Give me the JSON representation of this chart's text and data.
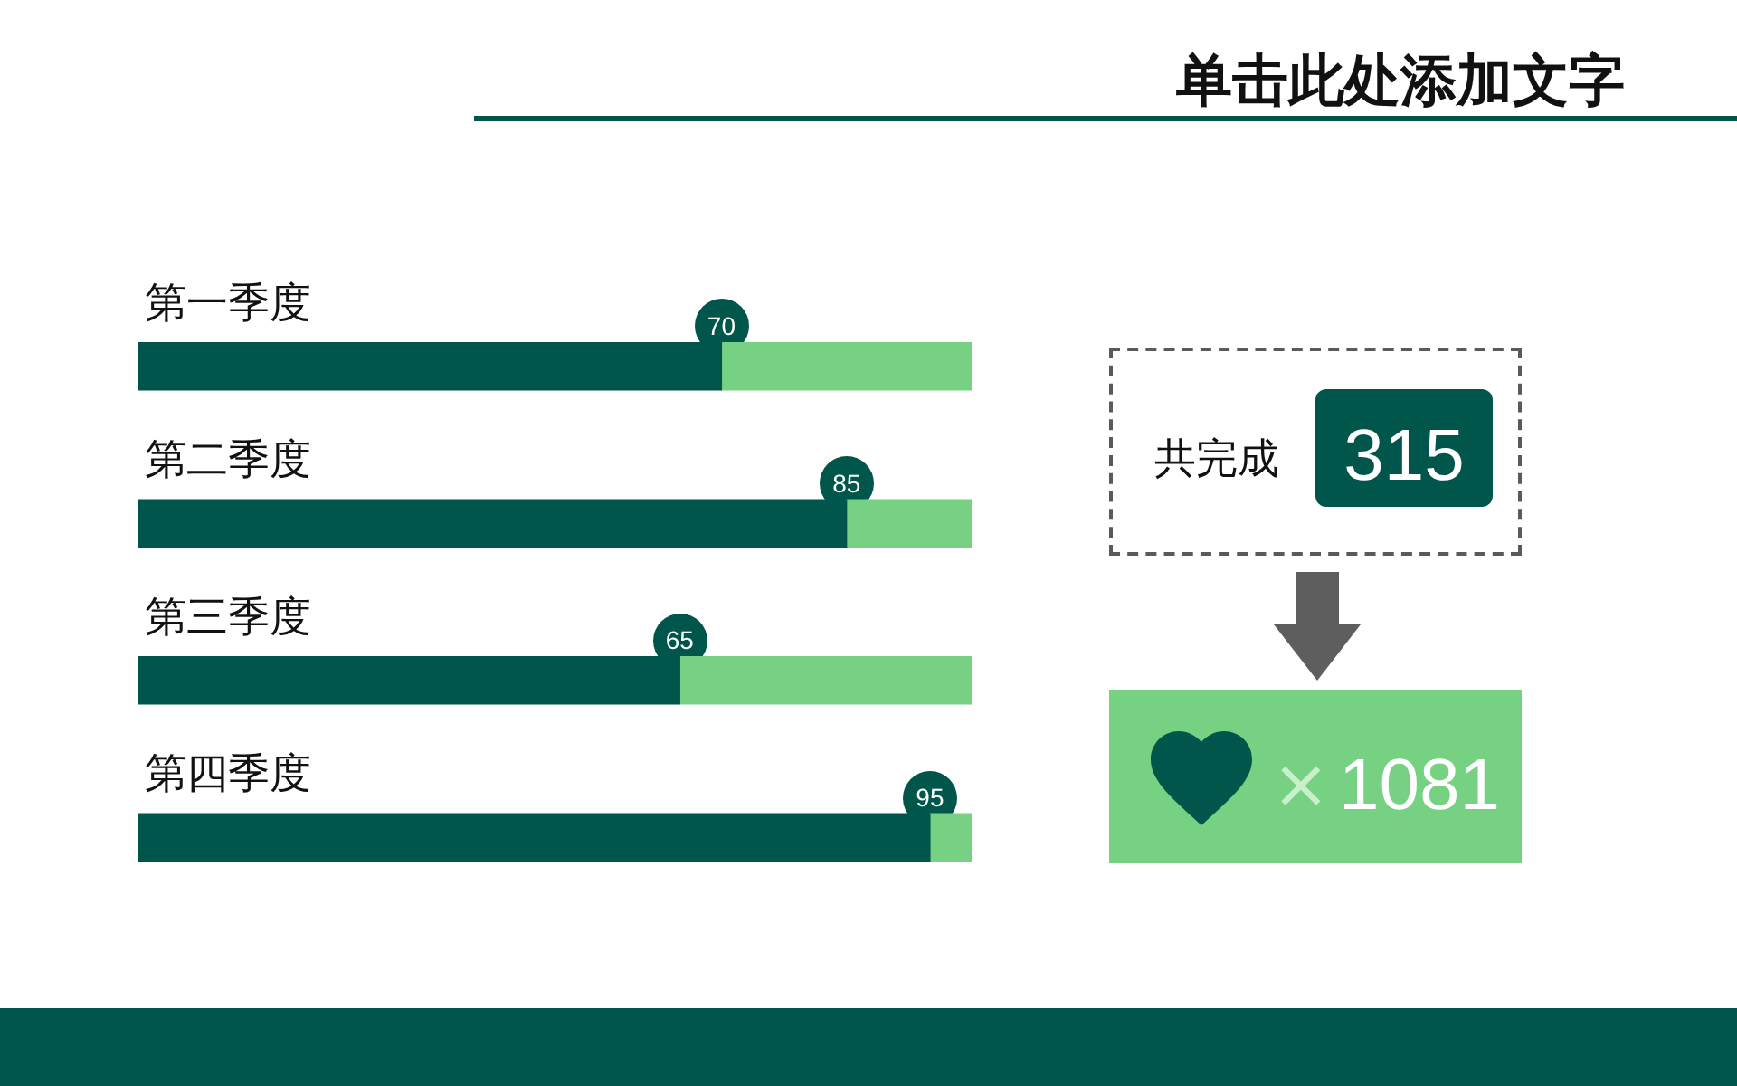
{
  "chart_data": {
    "type": "bar",
    "orientation": "horizontal",
    "stacked": true,
    "title": "单击此处添加文字",
    "categories": [
      "第一季度",
      "第二季度",
      "第三季度",
      "第四季度"
    ],
    "series": [
      {
        "color": "#00564b",
        "values": [
          70,
          85,
          65,
          95
        ],
        "value_labels": [
          "70",
          "85",
          "65",
          "95"
        ]
      },
      {
        "color": "#77d183",
        "values": [
          30,
          15,
          35,
          5
        ]
      }
    ],
    "annotations": [
      "共完成",
      "315",
      "×",
      "1081"
    ]
  }
}
